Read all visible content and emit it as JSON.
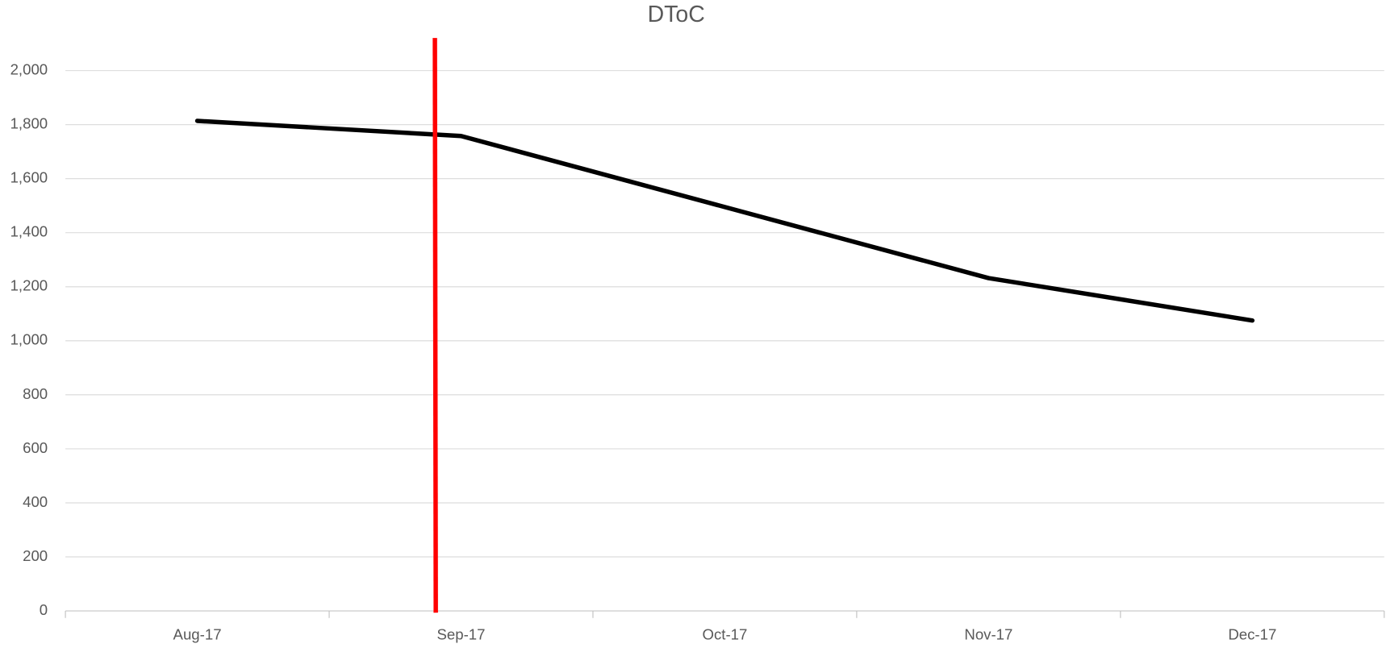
{
  "chart_data": {
    "type": "line",
    "title": "DToC",
    "categories": [
      "Aug-17",
      "Sep-17",
      "Oct-17",
      "Nov-17",
      "Dec-17"
    ],
    "series": [
      {
        "name": "DToC",
        "color": "#000000",
        "values": [
          1814,
          1758,
          1495,
          1232,
          1075
        ]
      }
    ],
    "ylim": [
      0,
      2000
    ],
    "yticks": [
      0,
      200,
      400,
      600,
      800,
      {
        "value": 1000,
        "label": "1,000"
      },
      {
        "value": 1200,
        "label": "1,200"
      },
      {
        "value": 1400,
        "label": "1,400"
      },
      {
        "value": 1600,
        "label": "1,600"
      },
      {
        "value": 1800,
        "label": "1,800"
      },
      {
        "value": 2000,
        "label": "2,000"
      }
    ],
    "grid": true
  }
}
